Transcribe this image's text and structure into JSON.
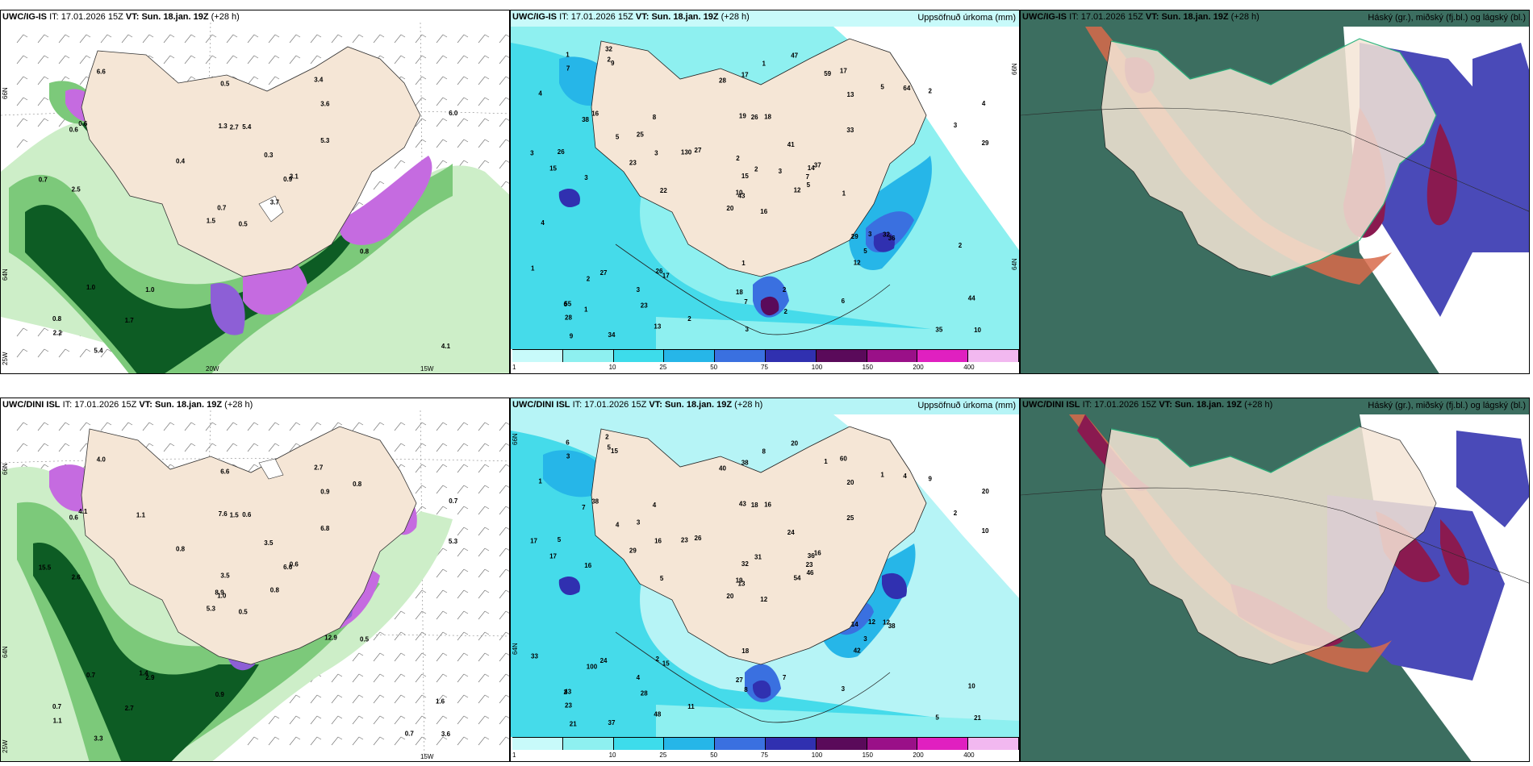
{
  "panels": {
    "wind_top": {
      "model": "UWC/IG-IS",
      "it_label": "IT:",
      "it_value": "17.01.2026 15Z",
      "vt_label": "VT:",
      "vt_value": "Sun. 18.jan. 19Z",
      "lead": "(+28 h)",
      "lat_66": "66N",
      "lat_64": "64N",
      "lon_20": "20W",
      "lon_15": "15W",
      "lon_25": "25W",
      "values": [
        "0.5",
        "0.6",
        "0.7",
        "0.8",
        "0.9",
        "1.0",
        "3.4",
        "5.4",
        "3.6",
        "3.7",
        "6.6",
        "4.1",
        "2.5",
        "6.0",
        "1.5",
        "5.3",
        "5.4",
        "1.3",
        "0.3",
        "1.0",
        "0.4",
        "2.2",
        "1.7",
        "2.7",
        "3.1",
        "0.8",
        "0.6",
        "0.5",
        "0.7"
      ]
    },
    "precip_top": {
      "model": "UWC/IG-IS",
      "it_label": "IT:",
      "it_value": "17.01.2026 15Z",
      "vt_label": "VT:",
      "vt_value": "Sun. 18.jan. 19Z",
      "lead": "(+28 h)",
      "right_label": "Uppsöfnuð úrkoma (mm)",
      "lat_66": "66N",
      "lat_64": "64N",
      "values": [
        "16",
        "38",
        "43",
        "55",
        "14",
        "17",
        "17",
        "18",
        "13",
        "12",
        "9",
        "10",
        "3",
        "4",
        "20",
        "33",
        "34",
        "19",
        "41",
        "27",
        "27",
        "28",
        "23",
        "26",
        "37",
        "36",
        "16",
        "17",
        "15",
        "29",
        "29",
        "10",
        "18",
        "15",
        "8",
        "5",
        "26",
        "35",
        "44",
        "32",
        "47",
        "130",
        "23",
        "12",
        "13",
        "3",
        "7",
        "9",
        "7",
        "5",
        "2",
        "3",
        "4",
        "5",
        "6",
        "3",
        "2",
        "1",
        "2",
        "2",
        "1",
        "22",
        "26",
        "25",
        "64",
        "32",
        "59",
        "28",
        "2",
        "1",
        "1",
        "2",
        "3",
        "3",
        "6",
        "7",
        "5",
        "4",
        "2",
        "2",
        "3",
        "1",
        "1",
        "2",
        "3"
      ]
    },
    "cloud_top": {
      "model": "UWC/IG-IS",
      "it_label": "IT:",
      "it_value": "17.01.2026 15Z",
      "vt_label": "VT:",
      "vt_value": "Sun. 18.jan. 19Z",
      "lead": "(+28 h)",
      "right_label": "Háský (gr.), miðský (fj.bl.) og lágský (bl.)"
    },
    "wind_bottom": {
      "model": "UWC/DINI ISL",
      "it_label": "IT:",
      "it_value": "17.01.2026 15Z",
      "vt_label": "VT:",
      "vt_value": "Sun. 18.jan. 19Z",
      "lead": "(+28 h)",
      "lat_66": "66N",
      "lat_64": "64N",
      "lon_15": "15W",
      "lon_25": "25W",
      "values": [
        "0.5",
        "0.6",
        "1.0",
        "0.7",
        "6.6",
        "2.9",
        "2.7",
        "0.6",
        "0.9",
        "0.8",
        "4.0",
        "3.6",
        "2.6",
        "0.7",
        "5.3",
        "6.8",
        "3.3",
        "7.6",
        "3.5",
        "0.7",
        "0.8",
        "1.1",
        "2.7",
        "1.5",
        "0.6",
        "0.5",
        "4.1",
        "6.6",
        "15.5",
        "12.9",
        "5.3",
        "8.9",
        "0.9",
        "3.5",
        "1.1",
        "0.8",
        "1.4",
        "0.7",
        "1.6"
      ]
    },
    "precip_bottom": {
      "model": "UWC/DINI ISL",
      "it_label": "IT:",
      "it_value": "17.01.2026 15Z",
      "vt_label": "VT:",
      "vt_value": "Sun. 18.jan. 19Z",
      "lead": "(+28 h)",
      "right_label": "Uppsöfnuð úrkoma (mm)",
      "lat_66": "66N",
      "lat_64": "64N",
      "values": [
        "12",
        "7",
        "13",
        "43",
        "36",
        "15",
        "60",
        "16",
        "20",
        "54",
        "15",
        "21",
        "16",
        "20",
        "20",
        "25",
        "37",
        "43",
        "24",
        "24",
        "26",
        "23",
        "28",
        "18",
        "16",
        "38",
        "38",
        "38",
        "17",
        "14",
        "10",
        "19",
        "27",
        "32",
        "4",
        "1",
        "2",
        "5",
        "10",
        "12",
        "20",
        "23",
        "29",
        "42",
        "48",
        "17",
        "23",
        "21",
        "8",
        "46",
        "100",
        "2",
        "1",
        "3",
        "3",
        "4",
        "5",
        "6",
        "7",
        "9",
        "8",
        "5",
        "5",
        "3",
        "4",
        "2",
        "1",
        "40",
        "31",
        "33",
        "18",
        "11",
        "12",
        "16",
        "2",
        "3",
        "4"
      ]
    },
    "cloud_bottom": {
      "model": "UWC/DINI ISL",
      "it_label": "IT:",
      "it_value": "17.01.2026 15Z",
      "vt_label": "VT:",
      "vt_value": "Sun. 18.jan. 19Z",
      "lead": "(+28 h)",
      "right_label": "Háský (gr.), miðský (fj.bl.) og lágský (bl.)"
    }
  },
  "precip_colorbar": {
    "ticks": [
      "1",
      "10",
      "25",
      "50",
      "75",
      "100",
      "150",
      "200",
      "400"
    ],
    "colors": [
      "#c8fafa",
      "#8ef0f0",
      "#3ddceb",
      "#26b6e8",
      "#3a70e0",
      "#3030b0",
      "#5a0a5a",
      "#9a1088",
      "#e020c0",
      "#f2b8f0"
    ]
  },
  "colors": {
    "land": "#f5e6d6",
    "sea_wind": "#ffffff",
    "wind_light": "#cdeec8",
    "wind_mid": "#7cc97a",
    "wind_dark": "#0d5c24",
    "wind_violet": "#c56be0",
    "precip_light": "#b6f4f6",
    "precip_mid": "#45dbea",
    "precip_blue": "#2f6fe0",
    "cloud_high": "#3c6e60",
    "cloud_mid": "#4a4ab8",
    "cloud_low": "#8a1a50",
    "cloud_orange": "#d86a4a"
  }
}
